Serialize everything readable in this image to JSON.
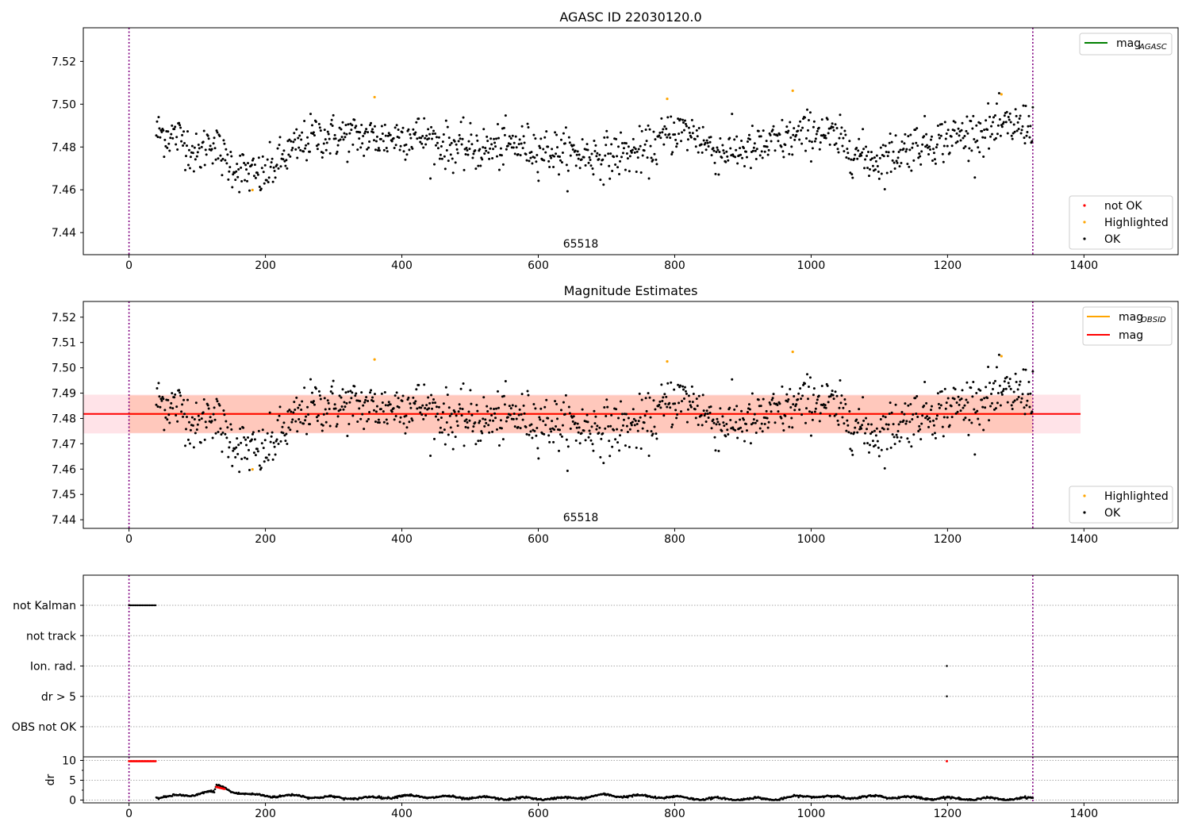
{
  "figure": {
    "top_title": "AGASC ID 22030120.0",
    "mid_title": "Magnitude Estimates",
    "obsid_label": "65518"
  },
  "colors": {
    "ok": "#000000",
    "highlighted": "#ffa500",
    "not_ok": "#ff0000",
    "mag_agasc": "#008000",
    "mag_obsid": "#ffa500",
    "mag": "#ff0000",
    "band_outer": "#ffc0cb",
    "band_inner": "#ffa07a",
    "obs_line": "#800080"
  },
  "chart_data": [
    {
      "id": "top",
      "type": "scatter",
      "title": "AGASC ID 22030120.0",
      "xlim": [
        -67,
        1538
      ],
      "ylim": [
        7.4297,
        7.5357
      ],
      "xticks": [
        0,
        200,
        400,
        600,
        800,
        1000,
        1200,
        1400
      ],
      "yticks": [
        7.44,
        7.46,
        7.48,
        7.5,
        7.52
      ],
      "obs_boundaries": [
        0,
        1325
      ],
      "annotation": "65518",
      "legend_lines": [
        {
          "name": "mag",
          "sub": "AGASC",
          "color": "#008000"
        }
      ],
      "legend_markers": [
        {
          "name": "not OK",
          "color": "#ff0000"
        },
        {
          "name": "Highlighted",
          "color": "#ffa500"
        },
        {
          "name": "OK",
          "color": "#000000"
        }
      ],
      "n_points": 1120,
      "x_start": 40,
      "x_end": 1325,
      "trend": [
        [
          40,
          7.487
        ],
        [
          80,
          7.484
        ],
        [
          100,
          7.475
        ],
        [
          120,
          7.484
        ],
        [
          140,
          7.474
        ],
        [
          170,
          7.468
        ],
        [
          195,
          7.466
        ],
        [
          230,
          7.476
        ],
        [
          270,
          7.485
        ],
        [
          330,
          7.485
        ],
        [
          370,
          7.484
        ],
        [
          420,
          7.486
        ],
        [
          470,
          7.48
        ],
        [
          520,
          7.479
        ],
        [
          570,
          7.481
        ],
        [
          640,
          7.477
        ],
        [
          700,
          7.476
        ],
        [
          760,
          7.478
        ],
        [
          800,
          7.488
        ],
        [
          830,
          7.486
        ],
        [
          860,
          7.478
        ],
        [
          920,
          7.479
        ],
        [
          970,
          7.484
        ],
        [
          1010,
          7.488
        ],
        [
          1050,
          7.481
        ],
        [
          1080,
          7.475
        ],
        [
          1100,
          7.474
        ],
        [
          1150,
          7.481
        ],
        [
          1200,
          7.484
        ],
        [
          1260,
          7.488
        ],
        [
          1325,
          7.491
        ]
      ],
      "highlighted_points": [
        [
          181,
          7.4599
        ],
        [
          360,
          7.5033
        ],
        [
          789,
          7.5025
        ],
        [
          973,
          7.5063
        ],
        [
          1279,
          7.5046
        ]
      ]
    },
    {
      "id": "mid",
      "type": "scatter",
      "title": "Magnitude Estimates",
      "xlim": [
        -67,
        1538
      ],
      "ylim": [
        7.4366,
        7.5262
      ],
      "xticks": [
        0,
        200,
        400,
        600,
        800,
        1000,
        1200,
        1400
      ],
      "yticks": [
        7.44,
        7.45,
        7.46,
        7.47,
        7.48,
        7.49,
        7.5,
        7.51,
        7.52
      ],
      "obs_boundaries": [
        0,
        1325
      ],
      "annotation": "65518",
      "mag": 7.4818,
      "mag_obsid": 7.4818,
      "band_outer": [
        -67,
        1395,
        7.4741,
        7.4894
      ],
      "band_inner": [
        0,
        1325,
        7.4743,
        7.4891
      ],
      "legend_lines": [
        {
          "name": "mag",
          "sub": "OBSID",
          "color": "#ffa500"
        },
        {
          "name": "mag",
          "sub": "",
          "color": "#ff0000"
        }
      ],
      "legend_markers": [
        {
          "name": "Highlighted",
          "color": "#ffa500"
        },
        {
          "name": "OK",
          "color": "#000000"
        }
      ]
    },
    {
      "id": "flags",
      "type": "scatter",
      "categories": [
        "OBS not OK",
        "dr > 5",
        "Ion. rad.",
        "not track",
        "not Kalman"
      ],
      "xlim": [
        -67,
        1538
      ],
      "xticks": [
        0,
        200,
        400,
        600,
        800,
        1000,
        1200,
        1400
      ],
      "obs_boundaries": [
        0,
        1325
      ],
      "flags": [
        {
          "category": "not Kalman",
          "x_from": 0,
          "x_to": 39
        },
        {
          "category": "Ion. rad.",
          "x_from": 1199,
          "x_to": 1199
        },
        {
          "category": "dr > 5",
          "x_from": 1199,
          "x_to": 1199
        }
      ]
    },
    {
      "id": "dr",
      "type": "scatter",
      "ylabel": "dr",
      "xlim": [
        -67,
        1538
      ],
      "ylim": [
        -0.7,
        10.9
      ],
      "yticks": [
        0,
        5,
        10
      ],
      "xticks": [
        0,
        200,
        400,
        600,
        800,
        1000,
        1200,
        1400
      ],
      "obs_boundaries": [
        0,
        1325
      ],
      "red_segments": [
        [
          0,
          39,
          9.8
        ],
        [
          128,
          140,
          3.3
        ],
        [
          1199,
          1199,
          9.8
        ]
      ],
      "dr_trend": [
        [
          40,
          0.8
        ],
        [
          90,
          1.1
        ],
        [
          110,
          2.1
        ],
        [
          125,
          1.9
        ],
        [
          128,
          3.5
        ],
        [
          140,
          3.1
        ],
        [
          150,
          2.3
        ],
        [
          180,
          1.2
        ],
        [
          250,
          1.0
        ],
        [
          300,
          0.6
        ],
        [
          350,
          0.5
        ],
        [
          400,
          1.0
        ],
        [
          450,
          0.8
        ],
        [
          500,
          0.6
        ],
        [
          560,
          0.4
        ],
        [
          640,
          0.4
        ],
        [
          700,
          1.2
        ],
        [
          760,
          0.9
        ],
        [
          800,
          0.7
        ],
        [
          850,
          0.3
        ],
        [
          950,
          0.3
        ],
        [
          1000,
          1.1
        ],
        [
          1050,
          0.6
        ],
        [
          1100,
          0.9
        ],
        [
          1150,
          0.6
        ],
        [
          1200,
          0.4
        ],
        [
          1250,
          0.3
        ],
        [
          1325,
          0.4
        ]
      ]
    }
  ]
}
